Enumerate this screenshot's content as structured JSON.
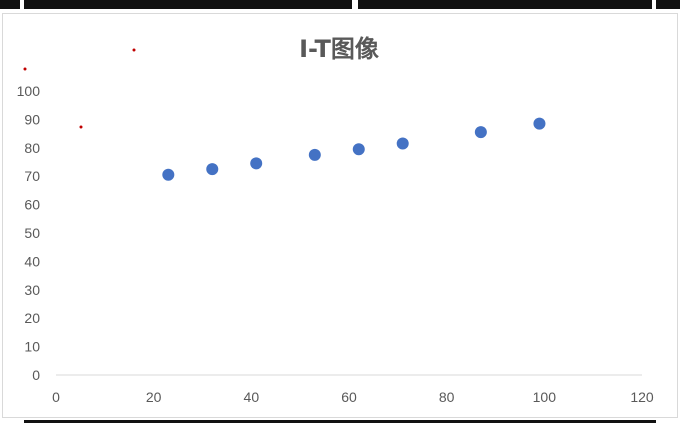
{
  "chart_data": {
    "type": "scatter",
    "title": "I-T图像",
    "xlabel": "",
    "ylabel": "",
    "xlim": [
      0,
      120
    ],
    "ylim": [
      0,
      100
    ],
    "x_ticks": [
      "0",
      "20",
      "40",
      "60",
      "80",
      "100",
      "120"
    ],
    "y_ticks": [
      "0",
      "10",
      "20",
      "30",
      "40",
      "50",
      "60",
      "70",
      "80",
      "90",
      "100"
    ],
    "grid": false,
    "legend": "none",
    "marker_color": "#4472C4",
    "x": [
      23,
      32,
      41,
      53,
      62,
      71,
      87,
      99
    ],
    "y": [
      70.5,
      72.5,
      74.5,
      77.5,
      79.5,
      81.5,
      85.5,
      88.5
    ]
  }
}
